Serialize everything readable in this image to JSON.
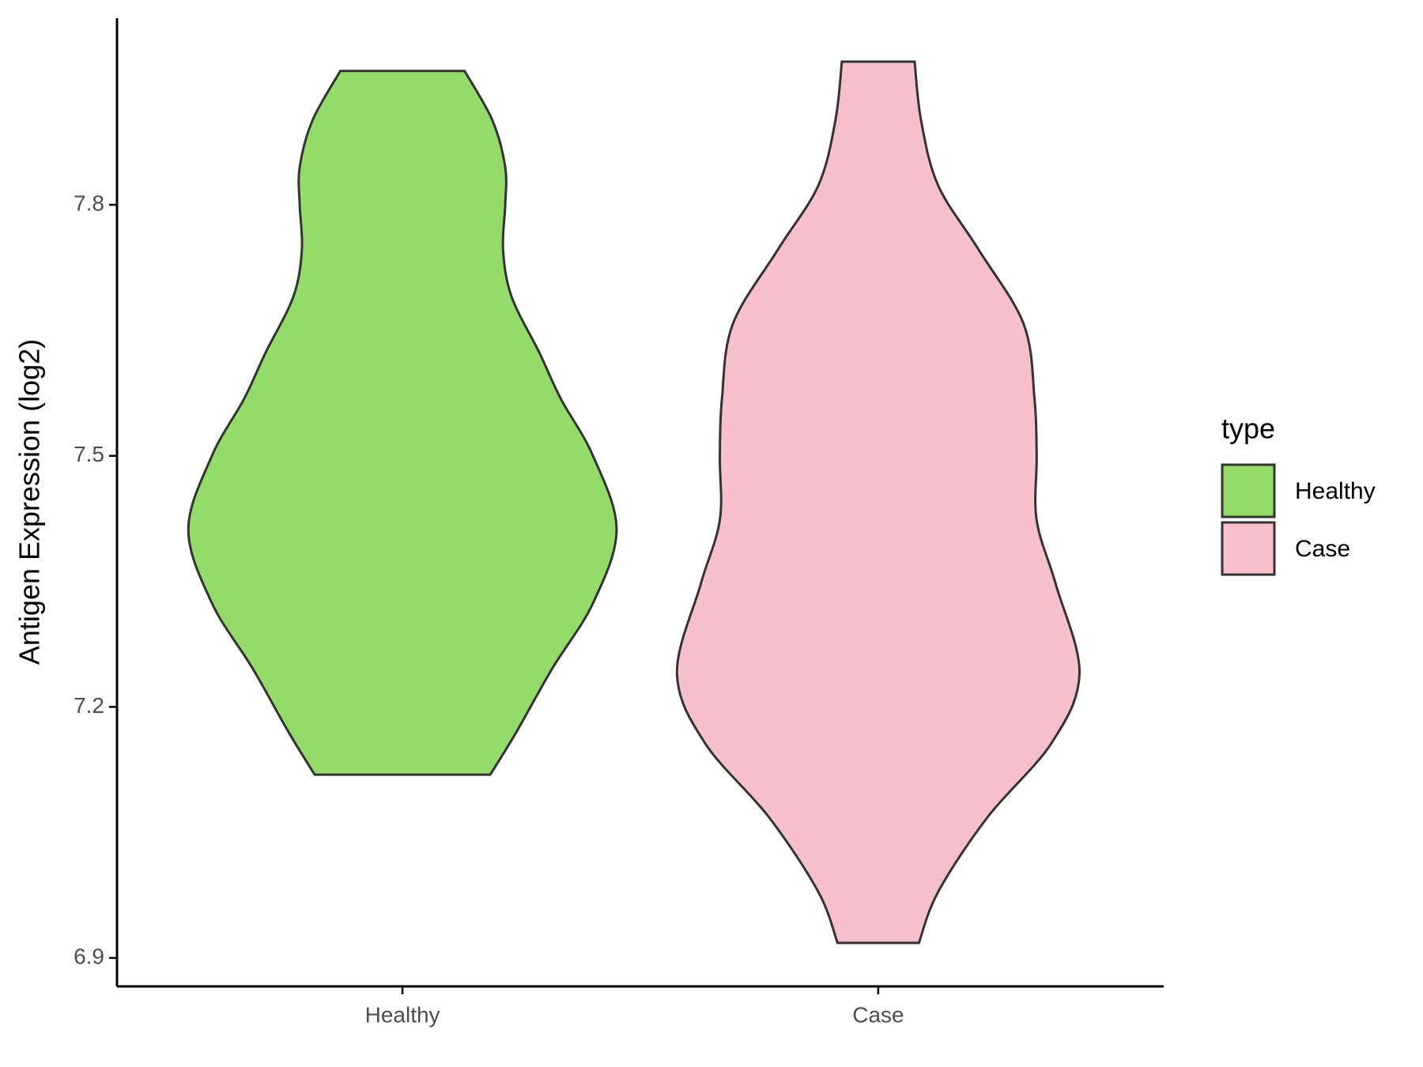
{
  "chart_data": {
    "type": "violin",
    "ylabel": "Antigen Expression (log2)",
    "categories": [
      "Healthy",
      "Case"
    ],
    "legend_title": "type",
    "legend": "right",
    "ylim": [
      6.866,
      8.023
    ],
    "yticks": [
      6.9,
      7.2,
      7.5,
      7.8
    ],
    "series": [
      {
        "name": "Healthy",
        "color": "#93dc6a",
        "y": [
          7.96,
          7.901,
          7.845,
          7.8,
          7.746,
          7.69,
          7.623,
          7.568,
          7.5,
          7.412,
          7.324,
          7.246,
          7.169,
          7.119
        ],
        "density": [
          0.29,
          0.42,
          0.48,
          0.48,
          0.47,
          0.51,
          0.64,
          0.74,
          0.89,
          1.0,
          0.89,
          0.7,
          0.53,
          0.41
        ]
      },
      {
        "name": "Case",
        "color": "#f8c0cb",
        "y": [
          7.971,
          7.901,
          7.823,
          7.746,
          7.657,
          7.568,
          7.5,
          7.423,
          7.346,
          7.24,
          7.157,
          7.068,
          6.979,
          6.918
        ],
        "density": [
          0.17,
          0.2,
          0.28,
          0.47,
          0.68,
          0.73,
          0.74,
          0.74,
          0.83,
          0.94,
          0.81,
          0.51,
          0.28,
          0.19
        ]
      }
    ]
  }
}
